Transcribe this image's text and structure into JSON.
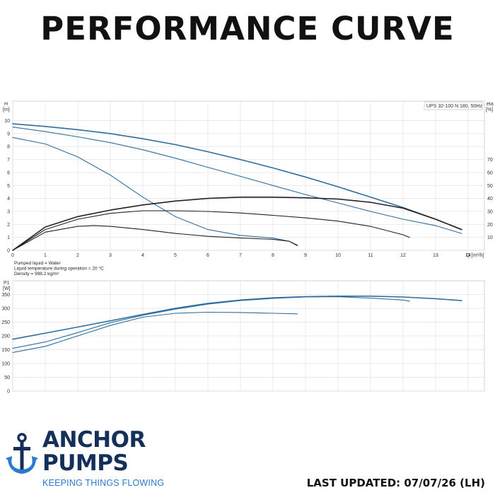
{
  "page": {
    "title": "PERFORMANCE CURVE",
    "last_updated": "LAST UPDATED: 07/07/26 (LH)"
  },
  "brand": {
    "line1": "ANCHOR",
    "line2": "PUMPS",
    "tagline": "KEEPING THINGS FLOWING",
    "color_dark": "#14305a",
    "color_light": "#2a7ad0",
    "logo_icon": "anchor-icon"
  },
  "chart_data": [
    {
      "type": "line",
      "legend_box": "UPS 32-100 N 180, 50Hz",
      "xlabel": "Q [m³/h]",
      "ylabel_left": "H",
      "ylabel_left_unit": "[m]",
      "ylabel_right": "eta",
      "ylabel_right_unit": "[%]",
      "xlim": [
        0,
        14.5
      ],
      "ylim_left": [
        0,
        11.5
      ],
      "ylim_right": [
        0,
        115
      ],
      "x_ticks": [
        "0",
        "1",
        "2",
        "3",
        "4",
        "5",
        "6",
        "7",
        "8",
        "9",
        "10",
        "11",
        "12",
        "13",
        "14"
      ],
      "y_ticks_left": [
        "0",
        "1",
        "2",
        "3",
        "4",
        "5",
        "6",
        "7",
        "8",
        "9",
        "10"
      ],
      "y_ticks_right": [
        "10",
        "20",
        "30",
        "40",
        "50",
        "60",
        "70"
      ],
      "grid": true,
      "head_color": "#2f6d9e",
      "eta_color": "#222222",
      "series": [
        {
          "axis": "left",
          "x": [
            0,
            1,
            2,
            3,
            4,
            5,
            6,
            7,
            8,
            9,
            10,
            11,
            12,
            13,
            13.8
          ],
          "y": [
            9.75,
            9.55,
            9.3,
            9.0,
            8.6,
            8.15,
            7.6,
            7.0,
            6.35,
            5.65,
            4.9,
            4.1,
            3.3,
            2.4,
            1.6
          ]
        },
        {
          "axis": "left",
          "x": [
            0,
            1,
            2,
            3,
            4,
            5,
            6,
            7,
            8,
            9,
            10,
            11,
            12,
            13,
            13.8
          ],
          "y": [
            9.5,
            9.15,
            8.75,
            8.3,
            7.75,
            7.1,
            6.4,
            5.7,
            5.0,
            4.3,
            3.65,
            3.0,
            2.4,
            1.9,
            1.3
          ]
        },
        {
          "axis": "left",
          "x": [
            0,
            1,
            2,
            3,
            4,
            5,
            6,
            7,
            8,
            8.5,
            8.75
          ],
          "y": [
            8.7,
            8.2,
            7.2,
            5.8,
            4.1,
            2.6,
            1.6,
            1.15,
            0.95,
            0.7,
            0.35
          ]
        },
        {
          "axis": "right",
          "x": [
            0,
            1,
            2,
            3,
            4,
            5,
            6,
            7,
            8,
            9,
            10,
            11,
            12,
            13,
            13.8
          ],
          "y": [
            0,
            18,
            26,
            31,
            35,
            38,
            40,
            41,
            41,
            40.5,
            39.5,
            37,
            32.5,
            24,
            16
          ]
        },
        {
          "axis": "right",
          "x": [
            0,
            1,
            2,
            3,
            4,
            5,
            6,
            7,
            8,
            9,
            10,
            11,
            12,
            12.2
          ],
          "y": [
            0,
            16,
            24,
            28.5,
            30.5,
            30.5,
            30,
            28.8,
            27,
            25,
            22.5,
            18.5,
            12,
            10
          ]
        },
        {
          "axis": "right",
          "x": [
            0,
            1,
            2,
            2.5,
            3,
            4,
            5,
            6,
            7,
            8,
            8.5,
            8.75
          ],
          "y": [
            0,
            14,
            18.5,
            19,
            18.5,
            16,
            13,
            10.8,
            9.5,
            8.5,
            7,
            4
          ]
        }
      ]
    },
    {
      "type": "line",
      "ylabel": "P1",
      "ylabel_unit": "[W]",
      "xlim": [
        0,
        14.5
      ],
      "ylim": [
        0,
        400
      ],
      "y_ticks": [
        "0",
        "50",
        "100",
        "150",
        "200",
        "250",
        "300",
        "350"
      ],
      "grid": true,
      "color": "#2f6d9e",
      "notes": [
        "Pumped liquid = Water",
        "Liquid temperature during operation = 20 °C",
        "Density = 998.2 kg/m³"
      ],
      "series": [
        {
          "x": [
            0,
            1,
            2,
            3,
            4,
            5,
            6,
            7,
            8,
            9,
            10,
            11,
            12,
            13,
            13.8
          ],
          "y": [
            188,
            210,
            232,
            255,
            278,
            300,
            318,
            330,
            338,
            342,
            344,
            344,
            341,
            335,
            328
          ]
        },
        {
          "x": [
            0,
            1,
            2,
            3,
            4,
            5,
            6,
            7,
            8,
            9,
            10,
            11,
            12,
            12.2
          ],
          "y": [
            155,
            178,
            212,
            248,
            275,
            297,
            315,
            328,
            336,
            341,
            342,
            337,
            330,
            326
          ]
        },
        {
          "x": [
            0,
            1,
            2,
            3,
            4,
            5,
            6,
            7,
            8,
            8.75
          ],
          "y": [
            140,
            162,
            200,
            238,
            268,
            282,
            286,
            285,
            282,
            280
          ]
        }
      ]
    }
  ]
}
